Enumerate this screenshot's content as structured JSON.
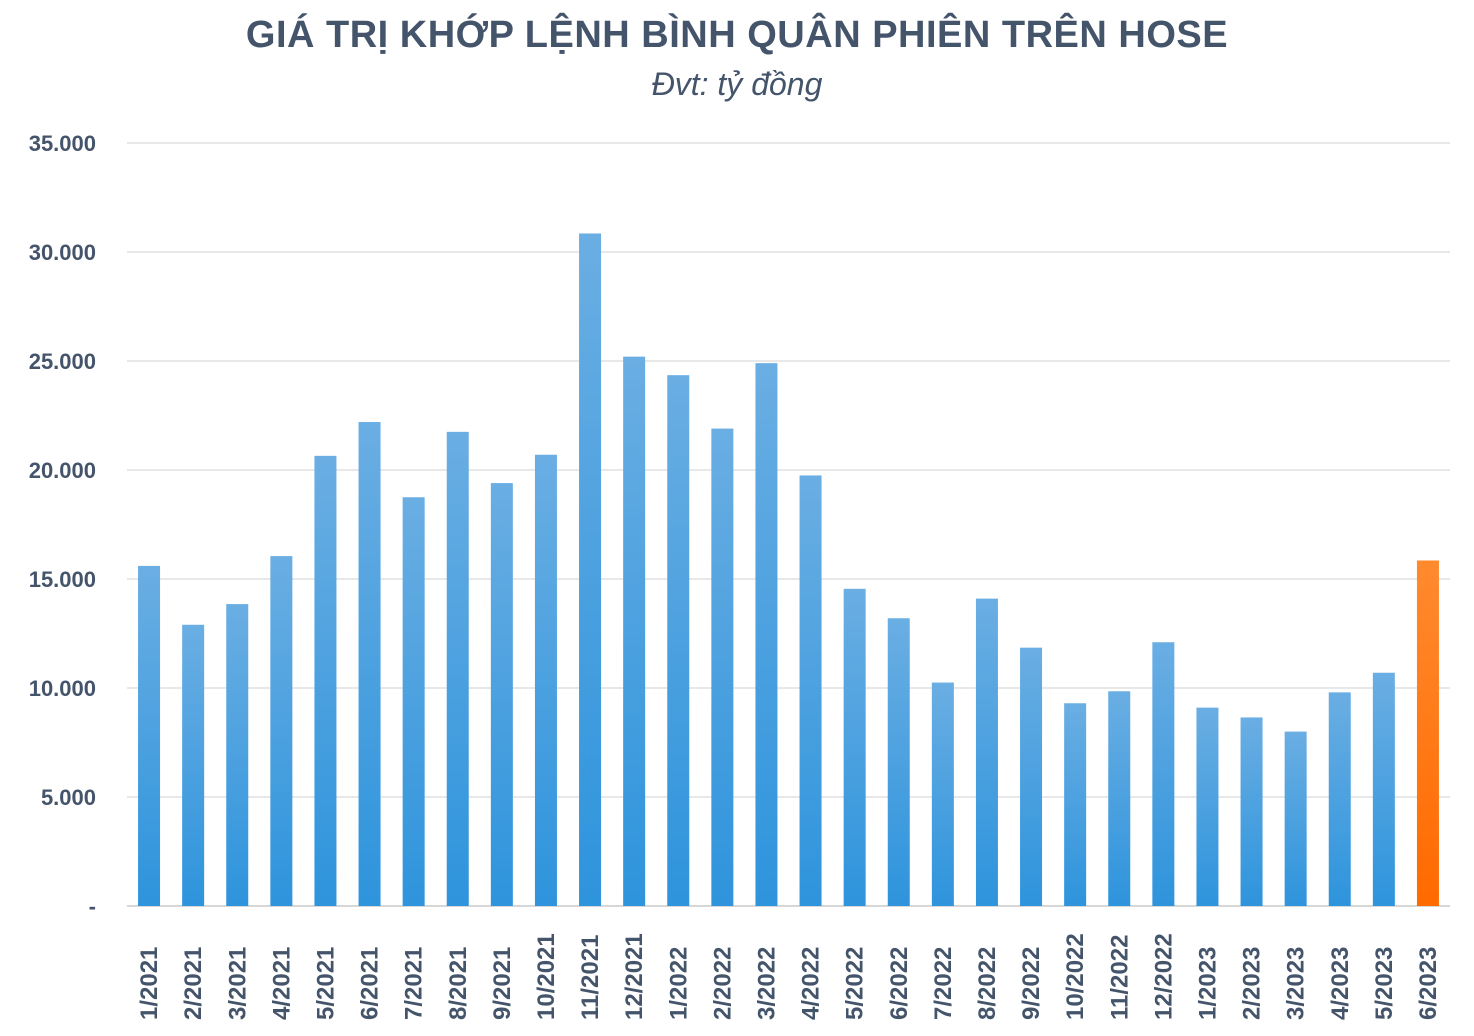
{
  "chart_data": {
    "type": "bar",
    "title": "GIÁ TRỊ KHỚP LỆNH BÌNH QUÂN PHIÊN TRÊN HOSE",
    "subtitle": "Đvt: tỷ đồng",
    "xlabel": "",
    "ylabel": "",
    "ylim": [
      0,
      35000
    ],
    "yticks": [
      0,
      5000,
      10000,
      15000,
      20000,
      25000,
      30000,
      35000
    ],
    "ytick_labels": [
      "-",
      "5.000",
      "10.000",
      "15.000",
      "20.000",
      "25.000",
      "30.000",
      "35.000"
    ],
    "grid": true,
    "legend": "none",
    "categories": [
      "1/2021",
      "2/2021",
      "3/2021",
      "4/2021",
      "5/2021",
      "6/2021",
      "7/2021",
      "8/2021",
      "9/2021",
      "10/2021",
      "11/2021",
      "12/2021",
      "1/2022",
      "2/2022",
      "3/2022",
      "4/2022",
      "5/2022",
      "6/2022",
      "7/2022",
      "8/2022",
      "9/2022",
      "10/2022",
      "11/2022",
      "12/2022",
      "1/2023",
      "2/2023",
      "3/2023",
      "4/2023",
      "5/2023",
      "6/2023"
    ],
    "values": [
      15600,
      12900,
      13850,
      16050,
      20650,
      22200,
      18750,
      21750,
      19400,
      20700,
      30850,
      25200,
      24350,
      21900,
      24900,
      19750,
      14550,
      13200,
      10250,
      14100,
      11850,
      9300,
      9850,
      12100,
      9100,
      8650,
      8000,
      9800,
      10700,
      15850
    ],
    "highlight_index": 29,
    "colors": {
      "bar": "#2e94dc",
      "bar_light": "#6aaee3",
      "highlight": "#ff6a00",
      "highlight_light": "#ff8a2e",
      "grid": "#d9d9d9",
      "text": "#44546a"
    }
  }
}
